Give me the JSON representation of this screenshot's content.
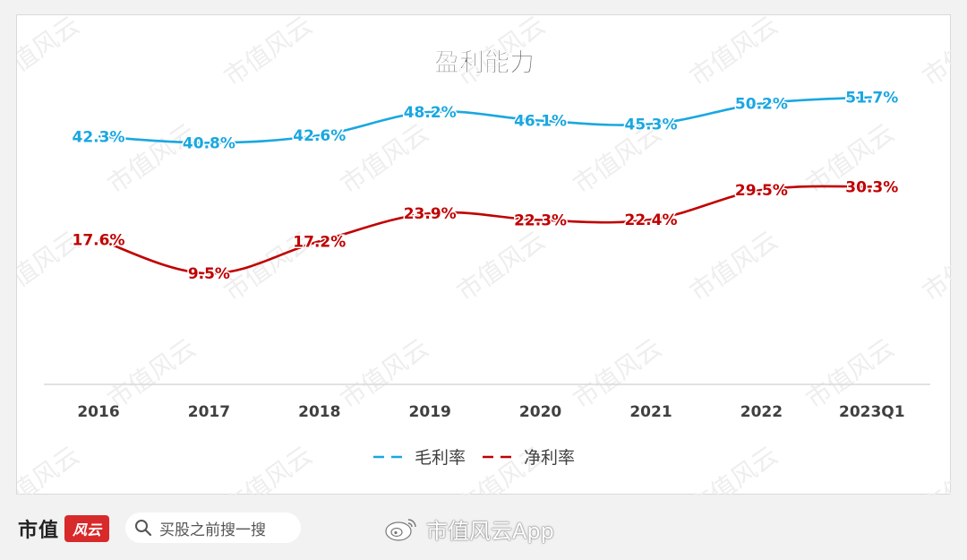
{
  "chart_data": {
    "type": "line",
    "title": "盈利能力",
    "categories": [
      "2016",
      "2017",
      "2018",
      "2019",
      "2020",
      "2021",
      "2022",
      "2023Q1"
    ],
    "series": [
      {
        "name": "毛利率",
        "color": "#1aa7e0",
        "values": [
          42.3,
          40.8,
          42.6,
          48.2,
          46.1,
          45.3,
          50.2,
          51.7
        ],
        "labels": [
          "42.3%",
          "40.8%",
          "42.6%",
          "48.2%",
          "46.1%",
          "45.3%",
          "50.2%",
          "51.7%"
        ]
      },
      {
        "name": "净利率",
        "color": "#c00000",
        "values": [
          17.6,
          9.5,
          17.2,
          23.9,
          22.3,
          22.4,
          29.5,
          30.3
        ],
        "labels": [
          "17.6%",
          "9.5%",
          "17.2%",
          "23.9%",
          "22.3%",
          "22.4%",
          "29.5%",
          "30.3%"
        ]
      }
    ],
    "legend_position": "bottom",
    "grid": false,
    "smooth": true
  },
  "watermark_text": "市值风云",
  "footer": {
    "brand": "市值",
    "brand_logo": "风云",
    "search_icon": "search-icon",
    "search_text": "买股之前搜一搜",
    "weibo_icon": "weibo-icon",
    "weibo_text": "市值风云App"
  }
}
